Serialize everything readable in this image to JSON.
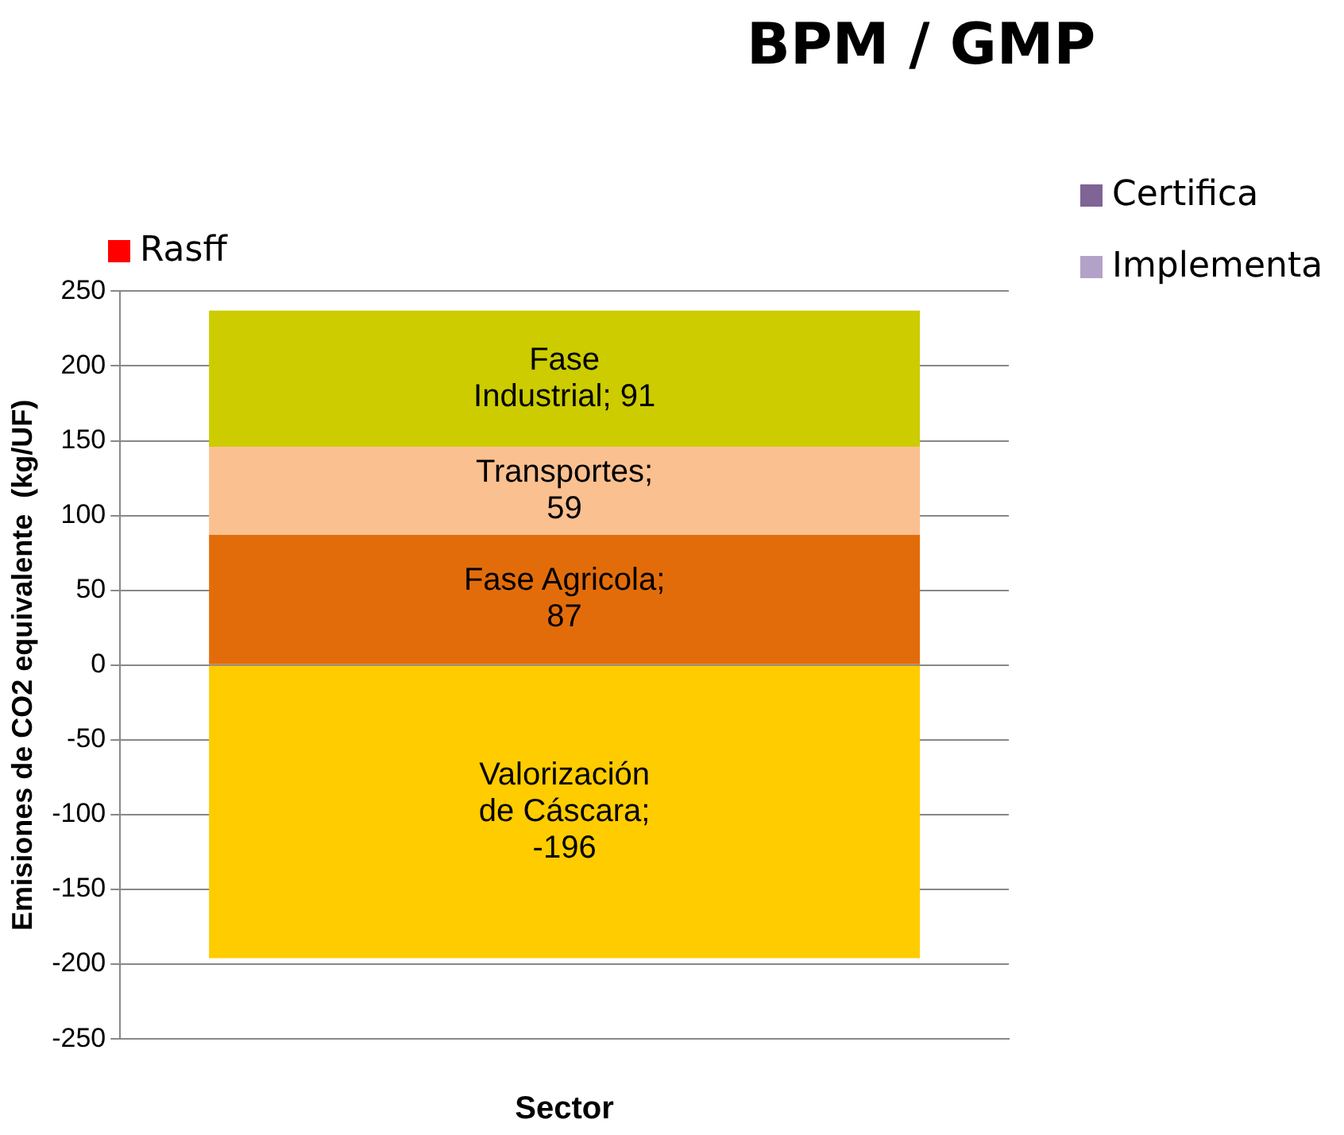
{
  "chart_data": [
    {
      "type": "bar",
      "stacked": true,
      "categories": [
        null
      ],
      "series": [
        {
          "color": "#e36c0a",
          "values": [
            87
          ],
          "value_labels": [
            "Fase Agricola; 87"
          ]
        },
        {
          "color": "#fac090",
          "values": [
            59
          ],
          "value_labels": [
            "Transportes; 59"
          ]
        },
        {
          "color": "#cccc00",
          "values": [
            91
          ],
          "value_labels": [
            "Fase Industrial; 91"
          ]
        },
        {
          "color": "#ffcc00",
          "values": [
            -196
          ],
          "value_labels": [
            "Valorización de Cáscara; -196"
          ]
        }
      ],
      "ylabel": "Emisiones de CO2 equivalente  (kg/UF)",
      "xlabel": "Sector",
      "ylim": [
        -250,
        250
      ],
      "yticks": [
        -250,
        -200,
        -150,
        -100,
        -50,
        0,
        50,
        100,
        150,
        200,
        250
      ],
      "grid": "y",
      "legend": false
    },
    {
      "type": "other",
      "title": "BPM / GMP",
      "annotations": [
        "Certifica",
        "Implementa",
        "Rasff"
      ]
    }
  ]
}
